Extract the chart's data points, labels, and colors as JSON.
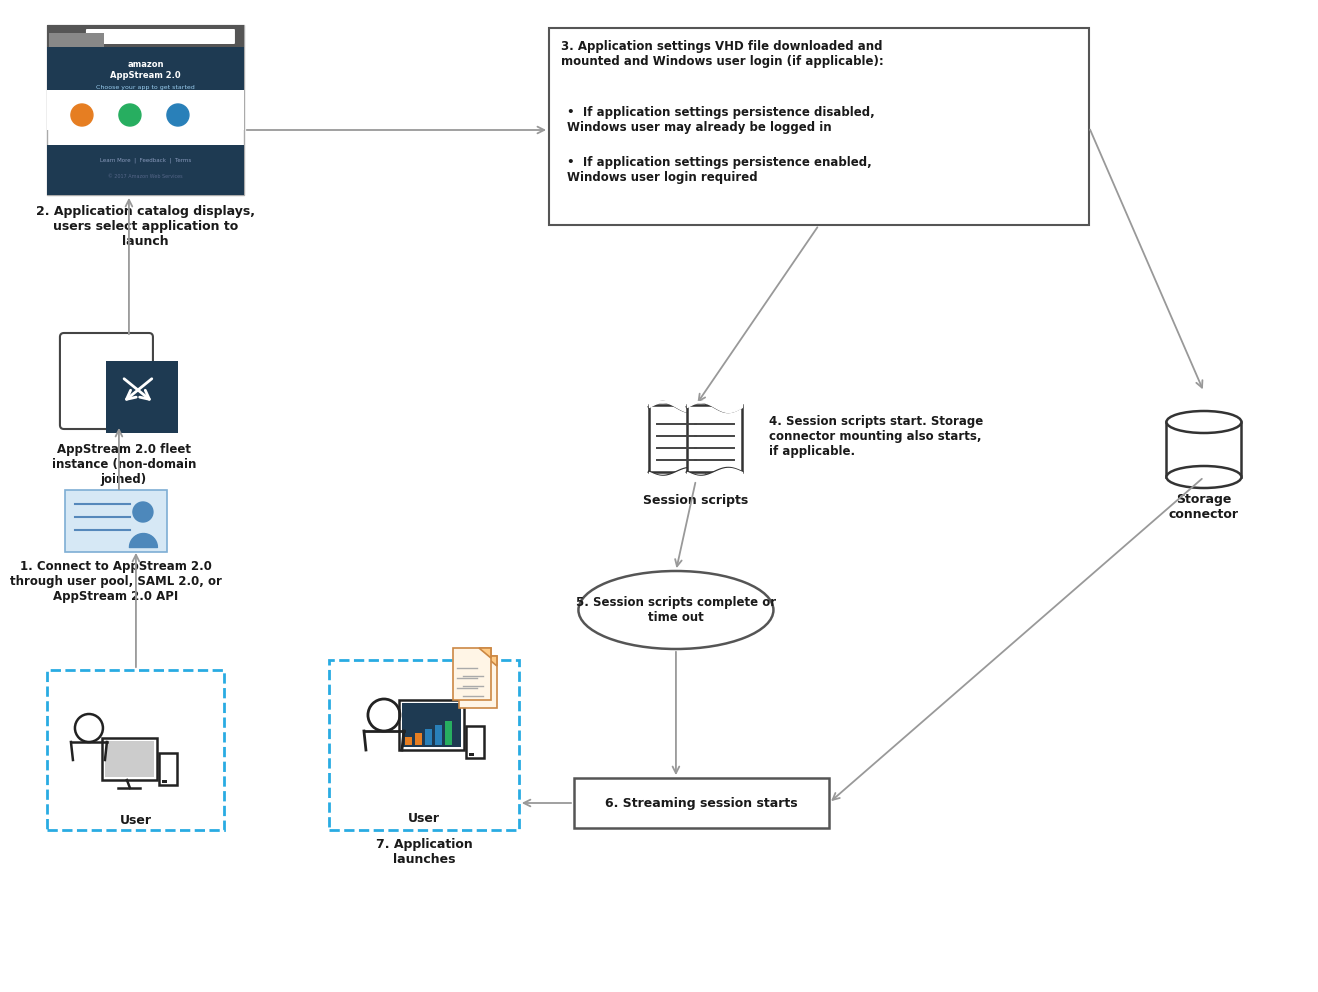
{
  "bg_color": "#ffffff",
  "arrow_color": "#999999",
  "text_color": "#1a1a1a",
  "dark_text": "#111111",
  "border_color": "#555555",
  "dashed_border_color": "#29abe2",
  "fleet_dark": "#1e3a52",
  "step3_title": "3. Application settings VHD file downloaded and\nmounted and Windows user login (if applicable):",
  "step3_b1": "If application settings persistence disabled,\nWindows user may already be logged in",
  "step3_b2": "If application settings persistence enabled,\nWindows user login required",
  "step2_label": "2. Application catalog displays,\nusers select application to\nlaunch",
  "fleet_label": "AppStream 2.0 fleet\ninstance (non-domain\njoined)",
  "step1_label": "1. Connect to AppStream 2.0\nthrough user pool, SAML 2.0, or\nAppStream 2.0 API",
  "user_label": "User",
  "step4_label": "4. Session scripts start. Storage\nconnector mounting also starts,\nif applicable.",
  "ss_label": "Session scripts",
  "sc_label": "Storage\nconnector",
  "step5_label": "5. Session scripts complete or\ntime out",
  "step6_label": "6. Streaming session starts",
  "step7_label": "7. Application\nlaunches"
}
